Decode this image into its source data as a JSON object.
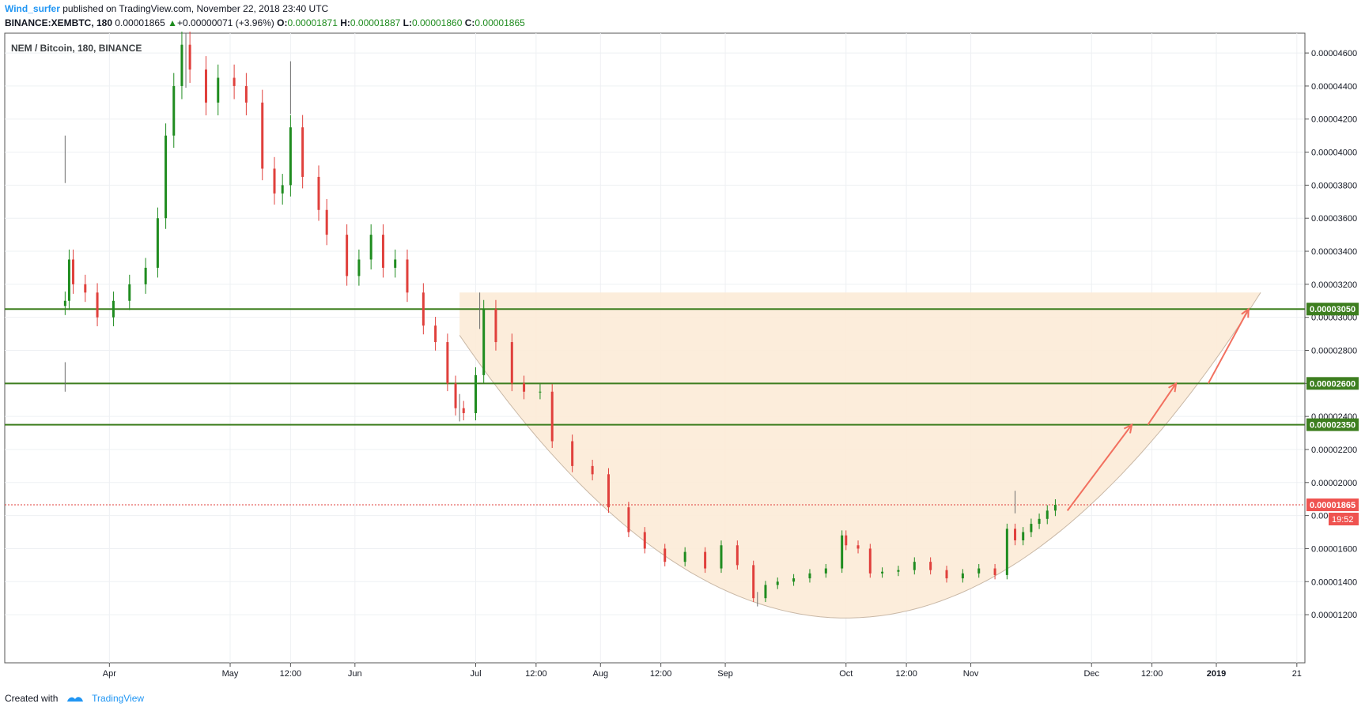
{
  "header": {
    "author": "Wind_surfer",
    "published": " published on TradingView.com, November 22, 2018 23:40 UTC",
    "symbol": "BINANCE:XEMBTC, 180",
    "last": "0.00001865",
    "change_arrow": "▲",
    "change": "+0.00000071 (+3.96%)",
    "o_label": "O:",
    "o_value": "0.00001871",
    "h_label": "H:",
    "h_value": "0.00001887",
    "l_label": "L:",
    "l_value": "0.00001860",
    "c_label": "C:",
    "c_value": "0.00001865"
  },
  "footer": {
    "created_with": "Created with",
    "brand": "TradingView"
  },
  "colors": {
    "up": "#1f8c1f",
    "down": "#e0403c",
    "levels": "#3d7e1f",
    "cup_fill": "#fcebd7",
    "arrow": "#f2705f",
    "price_tag": "#ef5350",
    "brand": "#2196f3"
  },
  "chart_data": {
    "type": "candlestick",
    "title": "NEM / Bitcoin, 180, BINANCE",
    "x_tick_labels": [
      "Apr",
      "May",
      "12:00",
      "Jun",
      "Jul",
      "12:00",
      "Aug",
      "12:00",
      "Sep",
      "Oct",
      "12:00",
      "Nov",
      "Dec",
      "12:00",
      "2019",
      "21"
    ],
    "x_tick_dates": [
      "2018-04-01",
      "2018-05-01",
      "2018-05-16",
      "2018-06-01",
      "2018-07-01",
      "2018-07-16",
      "2018-08-01",
      "2018-08-16",
      "2018-09-01",
      "2018-10-01",
      "2018-10-16",
      "2018-11-01",
      "2018-12-01",
      "2018-12-16",
      "2019-01-01",
      "2019-01-21"
    ],
    "y_tick_labels": [
      "0.00001200",
      "0.00001400",
      "0.00001600",
      "0.00001800",
      "0.00002000",
      "0.00002200",
      "0.00002400",
      "0.00002600",
      "0.00002800",
      "0.00003000",
      "0.00003200",
      "0.00003400",
      "0.00003600",
      "0.00003800",
      "0.00004000",
      "0.00004200",
      "0.00004400",
      "0.00004600"
    ],
    "y_ticks": [
      1.2e-05,
      1.4e-05,
      1.6e-05,
      1.8e-05,
      2e-05,
      2.2e-05,
      2.4e-05,
      2.6e-05,
      2.8e-05,
      3e-05,
      3.2e-05,
      3.4e-05,
      3.6e-05,
      3.8e-05,
      4e-05,
      4.2e-05,
      4.4e-05,
      4.6e-05
    ],
    "xlim": [
      "2018-03-06",
      "2019-01-23"
    ],
    "ylim": [
      1.1e-05,
      4.72e-05
    ],
    "grid": true,
    "close_path": {
      "dates": [
        "2018-03-21",
        "2018-03-22",
        "2018-03-23",
        "2018-03-26",
        "2018-03-29",
        "2018-04-02",
        "2018-04-06",
        "2018-04-10",
        "2018-04-13",
        "2018-04-15",
        "2018-04-17",
        "2018-04-19",
        "2018-04-21",
        "2018-04-25",
        "2018-04-28",
        "2018-05-02",
        "2018-05-05",
        "2018-05-09",
        "2018-05-12",
        "2018-05-14",
        "2018-05-16",
        "2018-05-19",
        "2018-05-23",
        "2018-05-25",
        "2018-05-30",
        "2018-06-02",
        "2018-06-05",
        "2018-06-08",
        "2018-06-11",
        "2018-06-14",
        "2018-06-18",
        "2018-06-21",
        "2018-06-24",
        "2018-06-26",
        "2018-06-28",
        "2018-07-01",
        "2018-07-03",
        "2018-07-06",
        "2018-07-10",
        "2018-07-13",
        "2018-07-17",
        "2018-07-20",
        "2018-07-25",
        "2018-07-30",
        "2018-08-03",
        "2018-08-08",
        "2018-08-12",
        "2018-08-17",
        "2018-08-22",
        "2018-08-27",
        "2018-08-31",
        "2018-09-04",
        "2018-09-08",
        "2018-09-11",
        "2018-09-14",
        "2018-09-18",
        "2018-09-22",
        "2018-09-26",
        "2018-09-30",
        "2018-10-01",
        "2018-10-04",
        "2018-10-07",
        "2018-10-10",
        "2018-10-14",
        "2018-10-18",
        "2018-10-22",
        "2018-10-26",
        "2018-10-30",
        "2018-11-03",
        "2018-11-07",
        "2018-11-10",
        "2018-11-12",
        "2018-11-14",
        "2018-11-16",
        "2018-11-18",
        "2018-11-20",
        "2018-11-22"
      ],
      "close": [
        3.1e-05,
        3.35e-05,
        3.2e-05,
        3.15e-05,
        3e-05,
        3.1e-05,
        3.2e-05,
        3.3e-05,
        3.6e-05,
        4.1e-05,
        4.4e-05,
        4.65e-05,
        4.5e-05,
        4.3e-05,
        4.45e-05,
        4.4e-05,
        4.3e-05,
        3.9e-05,
        3.75e-05,
        3.8e-05,
        4.15e-05,
        3.85e-05,
        3.65e-05,
        3.5e-05,
        3.25e-05,
        3.35e-05,
        3.5e-05,
        3.3e-05,
        3.35e-05,
        3.15e-05,
        2.95e-05,
        2.85e-05,
        2.6e-05,
        2.45e-05,
        2.42e-05,
        2.65e-05,
        3.05e-05,
        2.85e-05,
        2.6e-05,
        2.55e-05,
        2.55e-05,
        2.25e-05,
        2.1e-05,
        2.05e-05,
        1.85e-05,
        1.7e-05,
        1.6e-05,
        1.52e-05,
        1.58e-05,
        1.48e-05,
        1.62e-05,
        1.5e-05,
        1.3e-05,
        1.38e-05,
        1.4e-05,
        1.42e-05,
        1.45e-05,
        1.48e-05,
        1.68e-05,
        1.62e-05,
        1.6e-05,
        1.45e-05,
        1.46e-05,
        1.47e-05,
        1.52e-05,
        1.47e-05,
        1.42e-05,
        1.45e-05,
        1.48e-05,
        1.44e-05,
        1.72e-05,
        1.65e-05,
        1.7e-05,
        1.75e-05,
        1.78e-05,
        1.83e-05,
        1.865e-05
      ]
    },
    "wick_highs": [
      {
        "date": "2018-03-21",
        "value": 4.1e-05
      },
      {
        "date": "2018-04-20",
        "value": 4.72e-05
      },
      {
        "date": "2018-05-16",
        "value": 4.55e-05
      },
      {
        "date": "2018-07-02",
        "value": 3.15e-05
      },
      {
        "date": "2018-11-12",
        "value": 1.95e-05
      }
    ],
    "wick_lows": [
      {
        "date": "2018-03-21",
        "value": 2.55e-05
      },
      {
        "date": "2018-06-27",
        "value": 2.37e-05
      },
      {
        "date": "2018-09-09",
        "value": 1.25e-05
      }
    ],
    "horizontal_levels": [
      {
        "value": 3.05e-05,
        "label": "0.00003050"
      },
      {
        "value": 2.6e-05,
        "label": "0.00002600"
      },
      {
        "value": 2.35e-05,
        "label": "0.00002350"
      }
    ],
    "last_price": {
      "value": 1.865e-05,
      "label": "0.00001865",
      "countdown": "19:52"
    },
    "cup_pattern": {
      "top_left": {
        "date": "2018-06-27",
        "value": 3.15e-05
      },
      "top_right": {
        "date": "2019-01-12",
        "value": 3.15e-05
      },
      "bottom": {
        "date": "2018-10-01",
        "value": 1.18e-05
      }
    },
    "projection_arrows": [
      {
        "from": {
          "date": "2018-11-25",
          "value": 1.83e-05
        },
        "to": {
          "date": "2018-12-11",
          "value": 2.35e-05
        }
      },
      {
        "from": {
          "date": "2018-12-15",
          "value": 2.35e-05
        },
        "to": {
          "date": "2018-12-22",
          "value": 2.6e-05
        }
      },
      {
        "from": {
          "date": "2018-12-30",
          "value": 2.6e-05
        },
        "to": {
          "date": "2019-01-09",
          "value": 3.05e-05
        }
      }
    ]
  }
}
